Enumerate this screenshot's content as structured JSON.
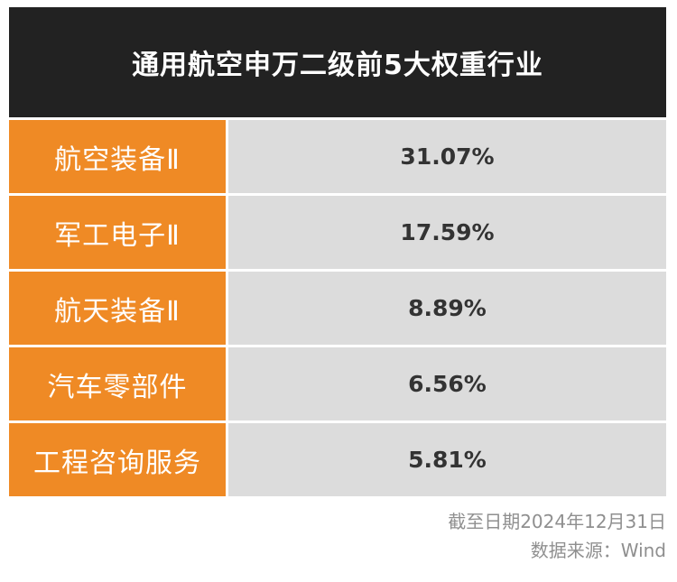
{
  "title": "通用航空申万二级前5大权重行业",
  "rows": [
    {
      "industry": "航空装备Ⅱ",
      "weight": "31.07%"
    },
    {
      "industry": "军工电子Ⅱ",
      "weight": "17.59%"
    },
    {
      "industry": "航天装备Ⅱ",
      "weight": "8.89%"
    },
    {
      "industry": "汽车零部件",
      "weight": "6.56%"
    },
    {
      "industry": "工程咨询服务",
      "weight": "5.81%"
    }
  ],
  "footer": {
    "date_note": "截至日期2024年12月31日",
    "source_note": "数据来源：Wind"
  },
  "colors": {
    "header_bg": "#222222",
    "name_bg": "#ef8a25",
    "value_bg": "#dcdcdc"
  }
}
